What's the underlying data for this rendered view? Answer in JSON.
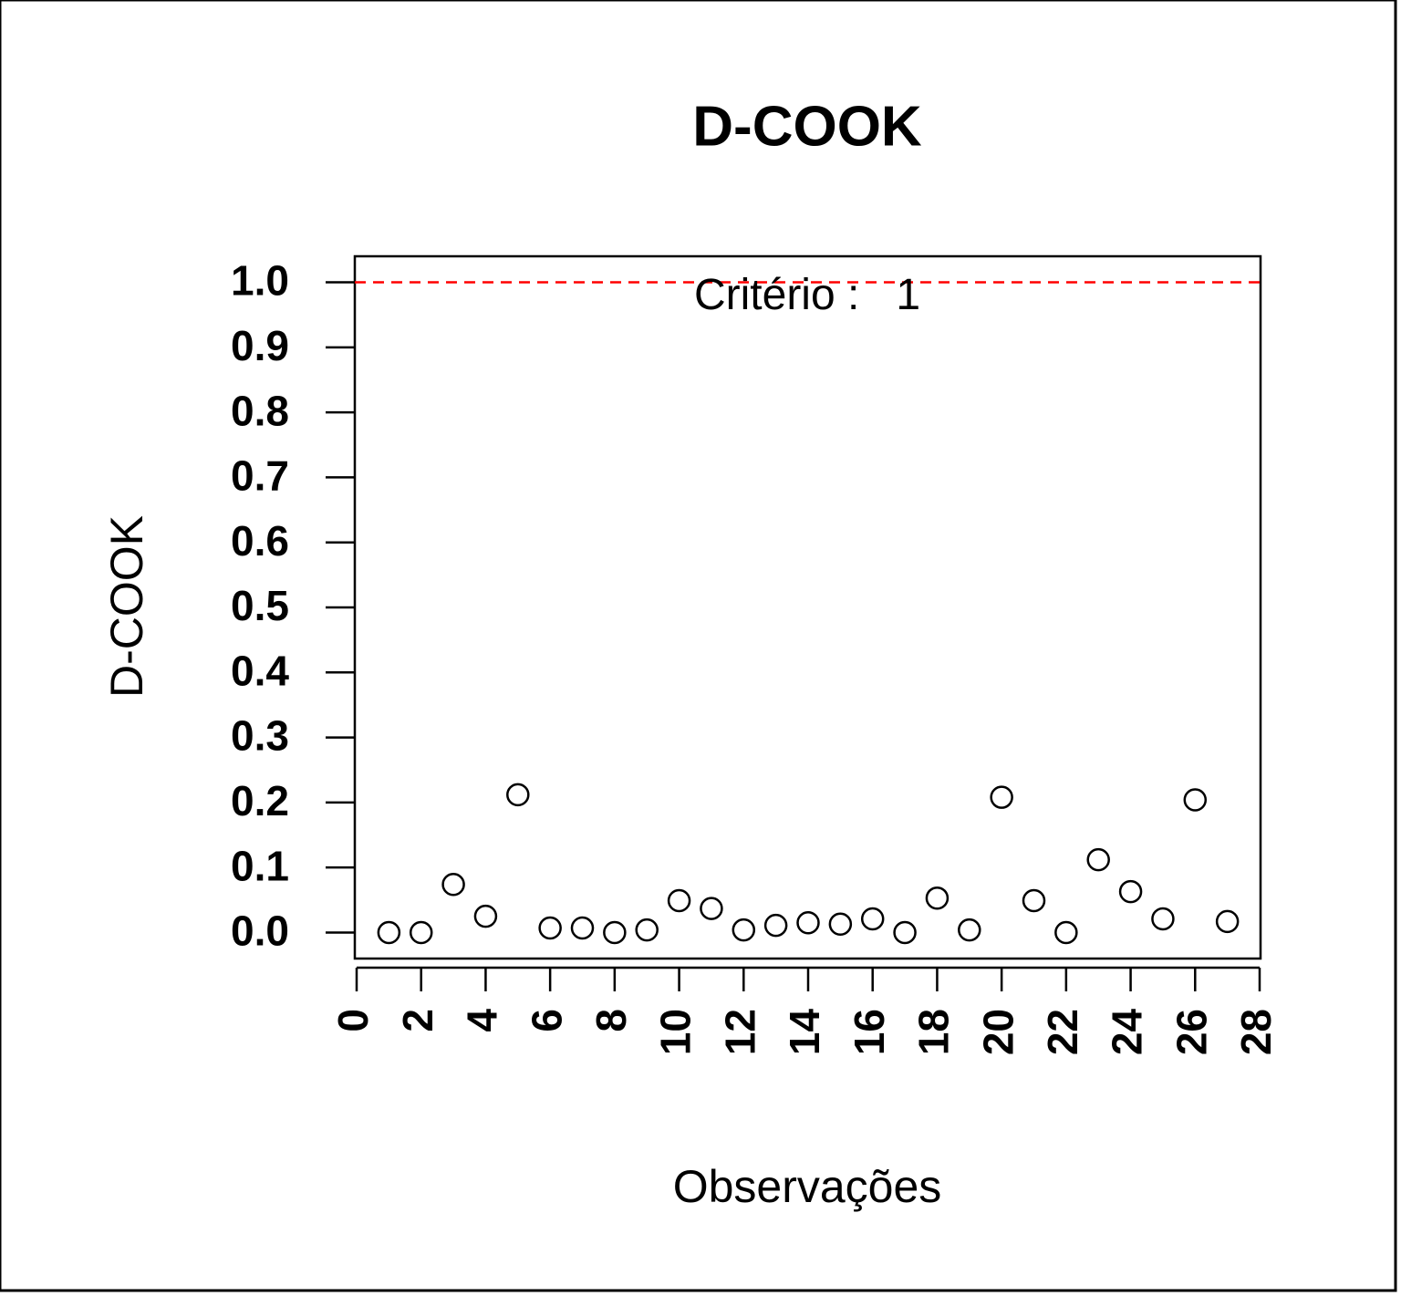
{
  "chart_data": {
    "type": "scatter",
    "title": "D-COOK",
    "x_label": "Observações",
    "y_label": "D-COOK",
    "x": [
      1,
      2,
      3,
      4,
      5,
      6,
      7,
      8,
      9,
      10,
      11,
      12,
      13,
      14,
      15,
      16,
      17,
      18,
      19,
      20,
      21,
      22,
      23,
      24,
      25,
      26,
      27
    ],
    "y": [
      0.0,
      0.0,
      0.074,
      0.025,
      0.212,
      0.007,
      0.007,
      0.0,
      0.004,
      0.049,
      0.037,
      0.004,
      0.011,
      0.015,
      0.013,
      0.021,
      0.0,
      0.053,
      0.004,
      0.208,
      0.049,
      0.0,
      0.112,
      0.063,
      0.021,
      0.204,
      0.017
    ],
    "color": "#000000",
    "xlim": [
      0,
      28
    ],
    "xticks": [
      0,
      2,
      4,
      6,
      8,
      10,
      12,
      14,
      16,
      18,
      20,
      22,
      24,
      26,
      28
    ],
    "ylim": [
      -0.04,
      1.04
    ],
    "yticks": [
      {
        "value": 0,
        "label": "0.0"
      },
      0.1,
      0.2,
      0.3,
      0.4,
      0.5,
      0.6,
      0.7,
      0.8,
      0.9,
      {
        "value": 1,
        "label": "1.0"
      }
    ],
    "reference_line": {
      "value": 1,
      "color": "#ff0000",
      "label": "Critério :   1"
    },
    "grid": false
  }
}
